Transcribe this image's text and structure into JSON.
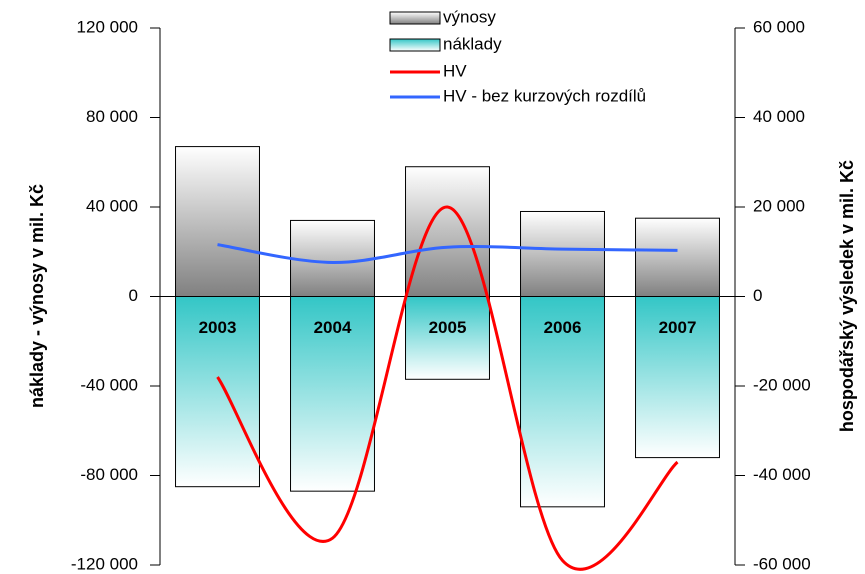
{
  "chart_data": {
    "type": "bar",
    "categories": [
      "2003",
      "2004",
      "2005",
      "2006",
      "2007"
    ],
    "series": [
      {
        "name": "výnosy",
        "color": "#808080",
        "values": [
          67000,
          34000,
          58000,
          38000,
          35000
        ]
      },
      {
        "name": "náklady",
        "color": "#33c6c6",
        "values": [
          -85000,
          -87000,
          -37000,
          -94000,
          -72000
        ]
      },
      {
        "name": "HV",
        "color": "#ff0000",
        "axis": "y2",
        "type": "line",
        "values": [
          -18000,
          -54000,
          20000,
          -59000,
          -37000
        ]
      },
      {
        "name": "HV - bez kurzových rozdílů",
        "color": "#3366ff",
        "axis": "y2",
        "type": "line",
        "values": [
          11600,
          7600,
          11000,
          10600,
          10300
        ]
      }
    ],
    "ylabel": "náklady    -    výnosy v mil. Kč",
    "y2label": "hospodářský výsledek v mil. Kč",
    "ylim": [
      -120000,
      120000
    ],
    "yticks": [
      {
        "value": -120000,
        "label": "-120 000"
      },
      {
        "value": -80000,
        "label": "-80 000"
      },
      {
        "value": -40000,
        "label": "-40 000"
      },
      0,
      {
        "value": 40000,
        "label": "40 000"
      },
      {
        "value": 80000,
        "label": "80 000"
      },
      {
        "value": 120000,
        "label": "120 000"
      }
    ],
    "y2lim": [
      -60000,
      60000
    ],
    "y2ticks": [
      {
        "value": -60000,
        "label": "-60 000"
      },
      {
        "value": -40000,
        "label": "-40 000"
      },
      {
        "value": -20000,
        "label": "-20 000"
      },
      0,
      {
        "value": 20000,
        "label": "20 000"
      },
      {
        "value": 40000,
        "label": "40 000"
      },
      {
        "value": 60000,
        "label": "60 000"
      }
    ],
    "legend": "top"
  }
}
